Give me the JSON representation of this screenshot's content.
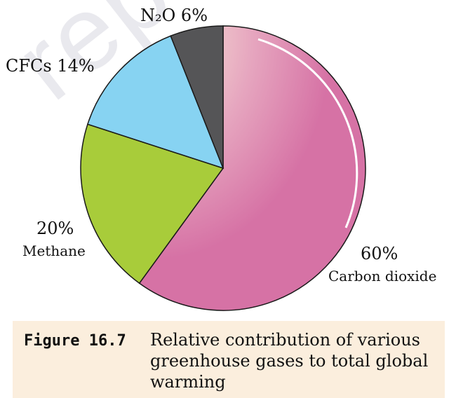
{
  "chart_data": {
    "type": "pie",
    "slices": [
      {
        "label": "Carbon dioxide",
        "percent_label": "60%",
        "value": 60,
        "color": "#d776a6"
      },
      {
        "label": "Methane",
        "percent_label": "20%",
        "value": 20,
        "color": "#a8cc3a"
      },
      {
        "label": "CFCs",
        "percent_label": "14%",
        "value": 14,
        "color": "#87d3f2"
      },
      {
        "label": "N₂O",
        "percent_label": "6%",
        "value": 6,
        "color": "#555557"
      }
    ],
    "labels": {
      "n2o": "N₂O  6%",
      "cfcs": "CFCs  14%",
      "methane_pct": "20%",
      "methane": "Methane",
      "co2_pct": "60%",
      "co2": "Carbon dioxide"
    }
  },
  "caption": {
    "figure_number": "Figure 16.7",
    "text": "Relative contribution of various greenhouse gases to total global warming"
  },
  "watermark": "rep"
}
